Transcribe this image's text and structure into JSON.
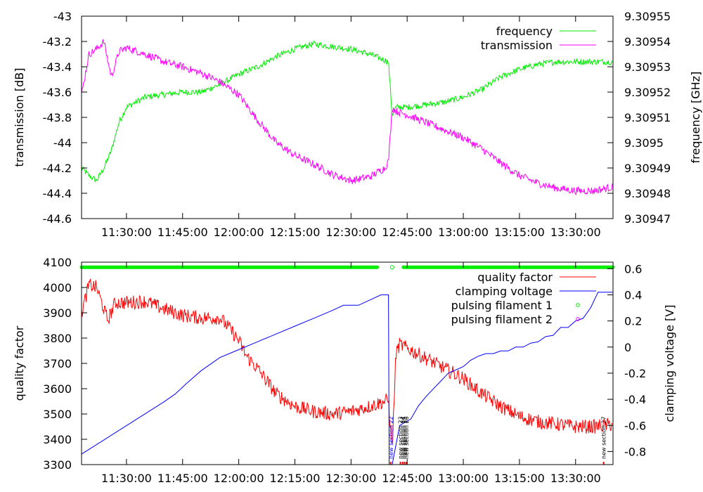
{
  "chart_data": [
    {
      "type": "line",
      "xlabel": "",
      "ylabel": "transmission [dB]",
      "y2label": "frequency [GHz]",
      "x_tick_labels": [
        "11:30:00",
        "11:45:00",
        "12:00:00",
        "12:15:00",
        "12:30:00",
        "12:45:00",
        "13:00:00",
        "13:15:00",
        "13:30:00"
      ],
      "x_tick_minutes": [
        30,
        45,
        60,
        75,
        90,
        105,
        120,
        135,
        150
      ],
      "xlim_minutes": [
        18,
        160
      ],
      "ylim": [
        -44.6,
        -43.0
      ],
      "y_tick_labels": [
        "-43",
        "-43.2",
        "-43.4",
        "-43.6",
        "-43.8",
        "-44",
        "-44.2",
        "-44.4",
        "-44.6"
      ],
      "y2lim": [
        9.30947,
        9.30955
      ],
      "y2_tick_labels": [
        "9.30955",
        "9.30954",
        "9.30953",
        "9.30952",
        "9.30951",
        "9.3095",
        "9.30949",
        "9.30948",
        "9.30947"
      ],
      "legend": [
        {
          "label": "frequency",
          "color": "#00ee00"
        },
        {
          "label": "transmission",
          "color": "#ff00ff"
        }
      ],
      "series": [
        {
          "name": "frequency",
          "axis": "y2",
          "color": "#00ee00",
          "x": [
            18,
            20,
            22,
            24,
            26,
            28,
            30,
            35,
            40,
            45,
            50,
            55,
            60,
            65,
            70,
            75,
            80,
            85,
            90,
            95,
            100,
            101,
            102,
            105,
            110,
            115,
            120,
            125,
            130,
            135,
            140,
            145,
            150,
            155,
            160
          ],
          "values": [
            9.30949,
            9.309487,
            9.309485,
            9.30949,
            9.309497,
            9.309508,
            9.309514,
            9.309518,
            9.309519,
            9.30952,
            9.30952,
            9.309523,
            9.309527,
            9.30953,
            9.309534,
            9.309537,
            9.309539,
            9.309538,
            9.309537,
            9.309535,
            9.309532,
            9.309511,
            9.309514,
            9.309514,
            9.309515,
            9.309516,
            9.309518,
            9.309521,
            9.309526,
            9.309529,
            9.309531,
            9.309532,
            9.309532,
            9.309532,
            9.309532
          ],
          "noise": 1.2e-06
        },
        {
          "name": "transmission",
          "axis": "y",
          "color": "#ff00ff",
          "x": [
            18,
            20,
            22,
            24,
            25,
            26,
            28,
            30,
            35,
            40,
            45,
            50,
            55,
            60,
            65,
            70,
            75,
            80,
            85,
            90,
            95,
            99,
            100,
            101,
            102,
            105,
            110,
            115,
            120,
            125,
            130,
            135,
            140,
            145,
            150,
            155,
            160
          ],
          "values": [
            -43.62,
            -43.3,
            -43.26,
            -43.2,
            -43.35,
            -43.48,
            -43.28,
            -43.25,
            -43.3,
            -43.36,
            -43.4,
            -43.45,
            -43.52,
            -43.62,
            -43.82,
            -44.0,
            -44.1,
            -44.17,
            -44.25,
            -44.3,
            -44.27,
            -44.2,
            -44.15,
            -43.72,
            -43.75,
            -43.78,
            -43.84,
            -43.9,
            -43.96,
            -44.05,
            -44.16,
            -44.26,
            -44.32,
            -44.36,
            -44.38,
            -44.38,
            -44.35
          ],
          "noise": 0.03
        }
      ]
    },
    {
      "type": "line",
      "xlabel": "",
      "ylabel": "quality factor",
      "y2label": "clamping voltage [V]",
      "x_tick_labels": [
        "11:30:00",
        "11:45:00",
        "12:00:00",
        "12:15:00",
        "12:30:00",
        "12:45:00",
        "13:00:00",
        "13:15:00",
        "13:30:00"
      ],
      "x_tick_minutes": [
        30,
        45,
        60,
        75,
        90,
        105,
        120,
        135,
        150
      ],
      "xlim_minutes": [
        18,
        160
      ],
      "ylim": [
        3300,
        4100
      ],
      "y_tick_labels": [
        "4100",
        "4000",
        "3900",
        "3800",
        "3700",
        "3600",
        "3500",
        "3400",
        "3300"
      ],
      "y2lim": [
        -0.9,
        0.65
      ],
      "y2_tick_labels": [
        "0.6",
        "0.4",
        "0.2",
        "0",
        "-0.2",
        "-0.4",
        "-0.6",
        "-0.8"
      ],
      "legend": [
        {
          "label": "quality factor",
          "color": "#ff0000"
        },
        {
          "label": "clamping voltage",
          "color": "#0000ff"
        },
        {
          "label": "pulsing filament 1",
          "color": "#00ee00"
        },
        {
          "label": "pulsing filament 2",
          "color": "#ff00ff"
        }
      ],
      "series": [
        {
          "name": "quality factor",
          "axis": "y",
          "color": "#ff0000",
          "x": [
            18,
            20,
            22,
            25,
            27,
            30,
            35,
            40,
            45,
            50,
            55,
            58,
            60,
            62,
            65,
            70,
            75,
            80,
            85,
            90,
            95,
            100,
            101,
            102,
            103,
            105,
            110,
            115,
            120,
            125,
            130,
            135,
            140,
            145,
            150,
            155,
            160
          ],
          "values": [
            3900,
            4010,
            4000,
            3870,
            3940,
            3940,
            3945,
            3915,
            3890,
            3880,
            3880,
            3830,
            3790,
            3730,
            3680,
            3580,
            3530,
            3510,
            3500,
            3510,
            3530,
            3555,
            3360,
            3740,
            3775,
            3760,
            3720,
            3680,
            3640,
            3580,
            3530,
            3490,
            3470,
            3460,
            3450,
            3450,
            3460
          ],
          "noise": 28
        },
        {
          "name": "clamping voltage",
          "axis": "y2",
          "color": "#0000ff",
          "x": [
            18,
            40,
            43,
            46,
            50,
            55,
            60,
            65,
            70,
            75,
            80,
            85,
            88,
            92,
            95,
            98,
            100,
            100.2,
            101,
            103,
            106,
            108,
            110,
            112,
            114,
            116,
            120,
            122,
            124,
            126,
            128,
            130,
            132,
            134,
            136,
            138,
            140,
            142,
            144,
            146,
            148,
            150,
            152,
            154,
            156,
            160
          ],
          "values": [
            -0.82,
            -0.42,
            -0.36,
            -0.28,
            -0.18,
            -0.08,
            -0.02,
            0.04,
            0.1,
            0.16,
            0.22,
            0.28,
            0.32,
            0.32,
            0.36,
            0.4,
            0.4,
            -0.9,
            -0.9,
            -0.6,
            -0.55,
            -0.45,
            -0.38,
            -0.32,
            -0.26,
            -0.2,
            -0.15,
            -0.1,
            -0.07,
            -0.05,
            -0.05,
            -0.03,
            -0.03,
            0.0,
            0.0,
            0.03,
            0.04,
            0.08,
            0.09,
            0.15,
            0.15,
            0.2,
            0.22,
            0.3,
            0.42,
            0.42
          ],
          "noise": 0
        }
      ],
      "pulsing_filament_1": {
        "color": "#00ee00",
        "segments": [
          [
            18,
            97
          ],
          [
            101,
            101
          ],
          [
            104,
            160
          ]
        ],
        "level": 4080
      },
      "annotations": [
        {
          "label": "new section 22",
          "x_minute": 100.6,
          "color": "#0000ff"
        },
        {
          "label": "new section 23",
          "x_minute": 103.2,
          "color": "#000000"
        },
        {
          "label": "new section 24",
          "x_minute": 103.8,
          "color": "#000000"
        },
        {
          "label": "new section 25",
          "x_minute": 104.3,
          "color": "#000000"
        },
        {
          "label": "new section 26",
          "x_minute": 104.8,
          "color": "#000000"
        },
        {
          "label": "new section 27",
          "x_minute": 157.5,
          "color": "#000000"
        }
      ]
    }
  ]
}
